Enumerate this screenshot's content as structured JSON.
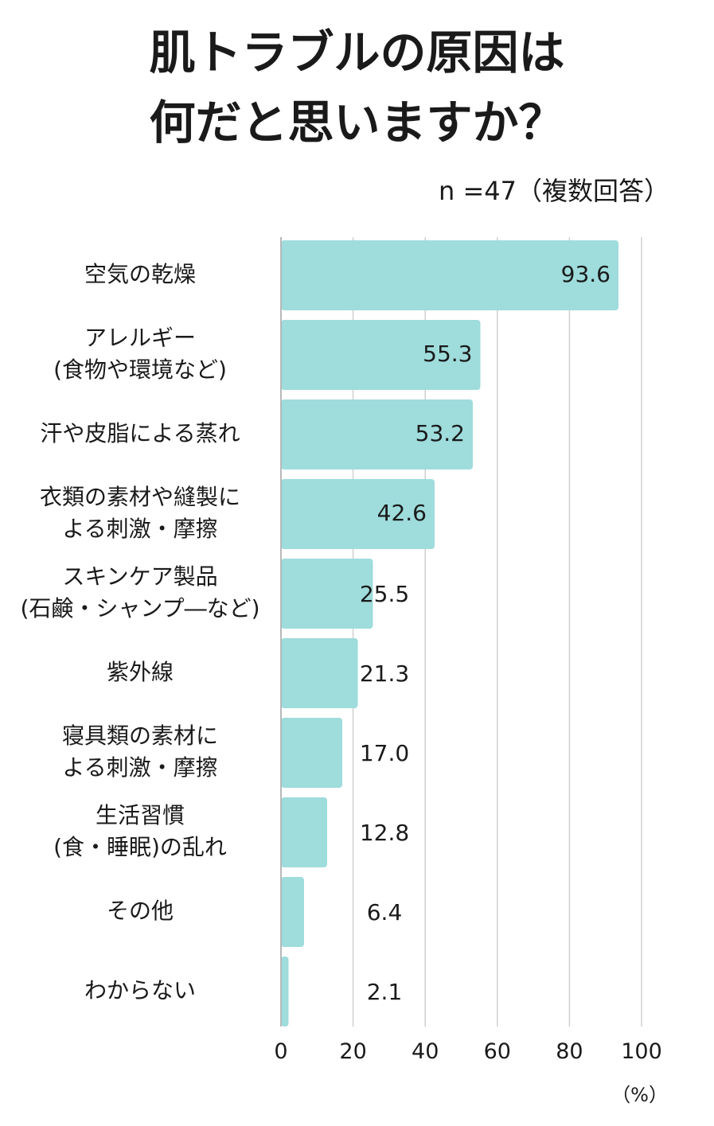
{
  "title_lines": [
    "肌トラブルの原因は",
    "何だと思いますか？"
  ],
  "note": "n =47（複数回答）",
  "chart_data": {
    "type": "bar",
    "orientation": "horizontal",
    "categories": [
      [
        "空気の乾燥"
      ],
      [
        "アレルギー",
        "(食物や環境など)"
      ],
      [
        "汗や皮脂による蒸れ"
      ],
      [
        "衣類の素材や縫製に",
        "よる刺激・摩擦"
      ],
      [
        "スキンケア製品",
        "(石鹸・シャンプ―など)"
      ],
      [
        "紫外線"
      ],
      [
        "寝具類の素材に",
        "よる刺激・摩擦"
      ],
      [
        "生活習慣",
        "(食・睡眠)の乱れ"
      ],
      [
        "その他"
      ],
      [
        "わからない"
      ]
    ],
    "values": [
      93.6,
      55.3,
      53.2,
      42.6,
      25.5,
      21.3,
      17.0,
      12.8,
      6.4,
      2.1
    ],
    "value_labels": [
      "93.6",
      "55.3",
      "53.2",
      "42.6",
      "25.5",
      "21.3",
      "17.0",
      "12.8",
      "6.4",
      "2.1"
    ],
    "xlim": [
      0,
      100
    ],
    "xticks": [
      "0",
      "20",
      "40",
      "60",
      "80",
      "100"
    ],
    "xunit": "（%）",
    "grid": true,
    "bar_color": "#9fdcdc"
  }
}
